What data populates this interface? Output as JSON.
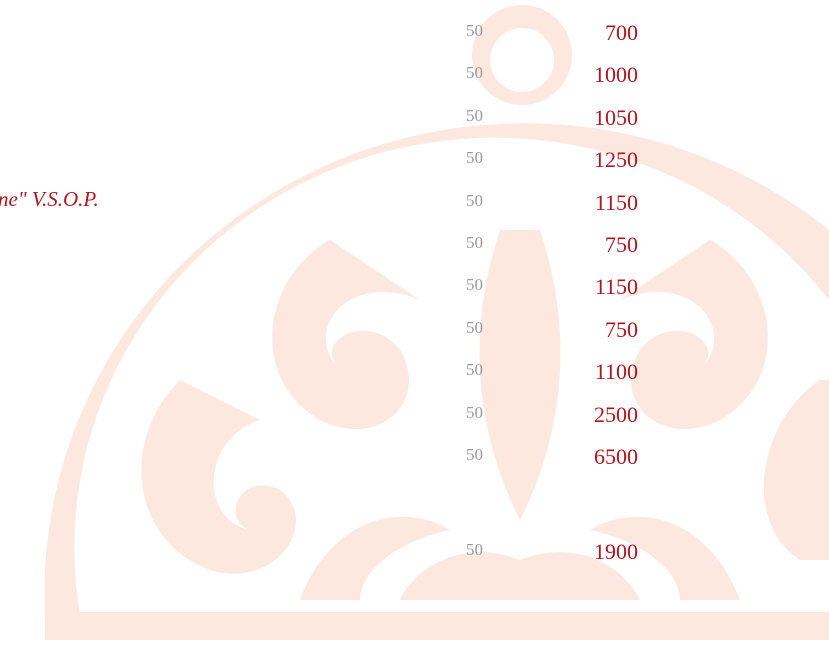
{
  "menu": {
    "item_fragment": "ne\" V.S.O.P.",
    "rows": [
      {
        "volume": "50",
        "price": "700"
      },
      {
        "volume": "50",
        "price": "1000"
      },
      {
        "volume": "50",
        "price": "1050"
      },
      {
        "volume": "50",
        "price": "1250"
      },
      {
        "volume": "50",
        "price": "1150"
      },
      {
        "volume": "50",
        "price": "750"
      },
      {
        "volume": "50",
        "price": "1150"
      },
      {
        "volume": "50",
        "price": "750"
      },
      {
        "volume": "50",
        "price": "1100"
      },
      {
        "volume": "50",
        "price": "2500"
      },
      {
        "volume": "50",
        "price": "6500"
      },
      {
        "volume": "50",
        "price": "1900"
      }
    ]
  }
}
